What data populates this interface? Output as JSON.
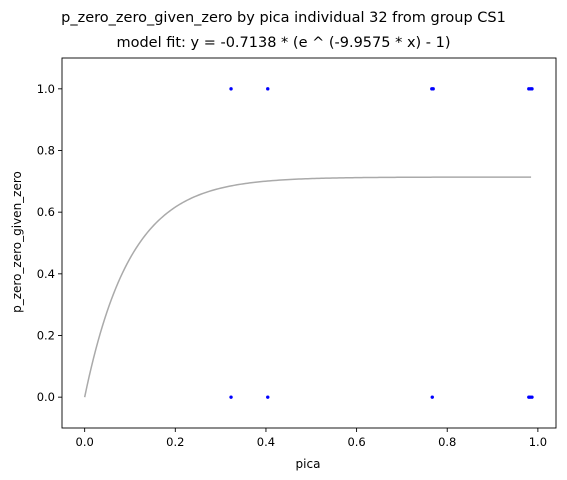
{
  "chart_data": {
    "type": "scatter",
    "title": "p_zero_zero_given_zero by pica individual 32 from group CS1",
    "subtitle": "model fit: y = -0.7138 * (e ^ (-9.9575 * x) - 1)",
    "xlabel": "pica",
    "ylabel": "p_zero_zero_given_zero",
    "xlim": [
      -0.05,
      1.04
    ],
    "ylim": [
      -0.1,
      1.1
    ],
    "xticks": [
      "0.0",
      "0.2",
      "0.4",
      "0.6",
      "0.8",
      "1.0"
    ],
    "yticks": [
      "0.0",
      "0.2",
      "0.4",
      "0.6",
      "0.8",
      "1.0"
    ],
    "grid": false,
    "legend": "none",
    "colors": {
      "points": "#0000ff",
      "fit": "#aaaaaa"
    },
    "fit": {
      "a": 0.7138,
      "b": 9.9575,
      "x_range": [
        0.0,
        0.985
      ]
    },
    "points": [
      {
        "x": 0.323,
        "y": 1.0
      },
      {
        "x": 0.404,
        "y": 1.0
      },
      {
        "x": 0.766,
        "y": 1.0
      },
      {
        "x": 0.769,
        "y": 1.0
      },
      {
        "x": 0.98,
        "y": 1.0
      },
      {
        "x": 0.984,
        "y": 1.0
      },
      {
        "x": 0.987,
        "y": 1.0
      },
      {
        "x": 0.323,
        "y": 0.0
      },
      {
        "x": 0.404,
        "y": 0.0
      },
      {
        "x": 0.767,
        "y": 0.0
      },
      {
        "x": 0.98,
        "y": 0.0
      },
      {
        "x": 0.983,
        "y": 0.0
      },
      {
        "x": 0.987,
        "y": 0.0
      }
    ]
  }
}
